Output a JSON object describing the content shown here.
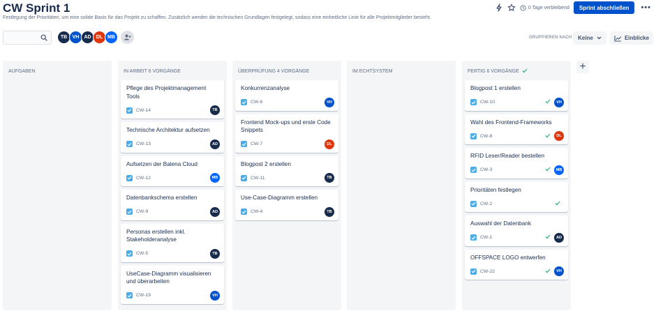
{
  "header": {
    "title": "CW Sprint 1",
    "subtitle": "Festlegung der Prioritäten, um eine solide Basis für das Projekt zu schaffen. Zusätzlich werden die technischen Grundlagen festgelegt, sodass eine einheitliche Linie für alle Projektmitglieder besteht.",
    "remaining": "0 Tage verbleibend",
    "complete_sprint": "Sprint abschließen",
    "more": "•••"
  },
  "toolbar": {
    "search_placeholder": "",
    "avatars": [
      {
        "initials": "TB",
        "color": "#172b4d"
      },
      {
        "initials": "VH",
        "color": "#0052cc"
      },
      {
        "initials": "AD",
        "color": "#172b4d"
      },
      {
        "initials": "DL",
        "color": "#de350b"
      },
      {
        "initials": "MB",
        "color": "#0065ff"
      }
    ],
    "group_by_label": "GRUPPIEREN NACH",
    "group_by_value": "Keine",
    "insights_label": "Einblicke"
  },
  "colors": {
    "TB": "#172b4d",
    "VH": "#0052cc",
    "AD": "#172b4d",
    "DL": "#de350b",
    "MB": "#0065ff"
  },
  "columns": [
    {
      "title": "AUFGABEN",
      "cards": []
    },
    {
      "title": "IN ARBEIT 6 VORGÄNGE",
      "cards": [
        {
          "title": "Pflege des Projektmanagement Tools",
          "key": "CW-14",
          "assignee": "TB",
          "done": false
        },
        {
          "title": "Technische Architektur aufsetzen",
          "key": "CW-13",
          "assignee": "AD",
          "done": false
        },
        {
          "title": "Aufsetzen der Balena Cloud",
          "key": "CW-12",
          "assignee": "MB",
          "done": false
        },
        {
          "title": "Datenbankschema erstellen",
          "key": "CW-9",
          "assignee": "AD",
          "done": false
        },
        {
          "title": "Personas erstellen inkl. Stakeholderanalyse",
          "key": "CW-5",
          "assignee": "TB",
          "done": false
        },
        {
          "title": "UseCase-Diagramm visualisieren und überarbeiten",
          "key": "CW-19",
          "assignee": "VH",
          "done": false
        }
      ]
    },
    {
      "title": "ÜBERPRÜFUNG 4 VORGÄNGE",
      "cards": [
        {
          "title": "Konkurrenzanalyse",
          "key": "CW-6",
          "assignee": "VH",
          "done": false
        },
        {
          "title": "Frontend Mock-ups und erste Code Snippets",
          "key": "CW-7",
          "assignee": "DL",
          "done": false
        },
        {
          "title": "Blogpost 2 erstellen",
          "key": "CW-11",
          "assignee": "TB",
          "done": false
        },
        {
          "title": "Use-Case-Diagramm erstellen",
          "key": "CW-4",
          "assignee": "TB",
          "done": false
        }
      ]
    },
    {
      "title": "IM ECHTSYSTEM",
      "cards": []
    },
    {
      "title": "FERTIG 6 VORGÄNGE",
      "done_column": true,
      "cards": [
        {
          "title": "Blogpost 1 erstellen",
          "key": "CW-10",
          "assignee": "VH",
          "done": true
        },
        {
          "title": "Wahl des Frontend-Frameworks",
          "key": "CW-8",
          "assignee": "DL",
          "done": true
        },
        {
          "title": "RFID Leser/Reader bestellen",
          "key": "CW-3",
          "assignee": "MB",
          "done": true
        },
        {
          "title": "Prioritäten festlegen",
          "key": "CW-2",
          "assignee": "",
          "done": true
        },
        {
          "title": "Auswahl der Datenbank",
          "key": "CW-1",
          "assignee": "AD",
          "done": true
        },
        {
          "title": "OFFSPACE LOGO entwerfen",
          "key": "CW-22",
          "assignee": "VH",
          "done": true
        }
      ]
    }
  ]
}
